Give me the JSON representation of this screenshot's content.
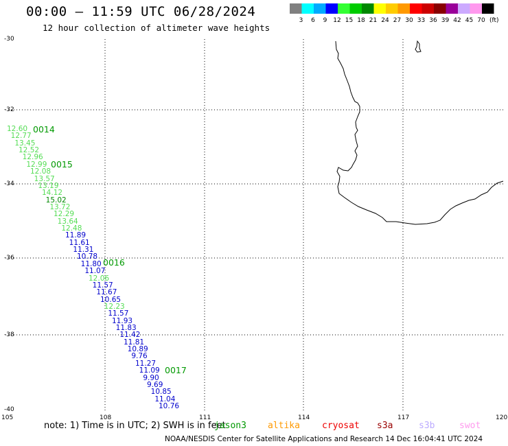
{
  "header": {
    "title": "00:00 – 11:59 UTC 06/28/2024",
    "subtitle": "12 hour collection of altimeter wave heights"
  },
  "legend": {
    "unit": "(ft)",
    "bins": [
      {
        "label": "3",
        "color": "#808080"
      },
      {
        "label": "6",
        "color": "#00ffff"
      },
      {
        "label": "9",
        "color": "#00aaff"
      },
      {
        "label": "12",
        "color": "#0000ff"
      },
      {
        "label": "15",
        "color": "#33ff33"
      },
      {
        "label": "18",
        "color": "#00cc00"
      },
      {
        "label": "21",
        "color": "#008800"
      },
      {
        "label": "24",
        "color": "#ffff00"
      },
      {
        "label": "27",
        "color": "#ffcc00"
      },
      {
        "label": "30",
        "color": "#ff9900"
      },
      {
        "label": "33",
        "color": "#ff0000"
      },
      {
        "label": "36",
        "color": "#cc0000"
      },
      {
        "label": "39",
        "color": "#880000"
      },
      {
        "label": "42",
        "color": "#990099"
      },
      {
        "label": "45",
        "color": "#ccaaff"
      },
      {
        "label": "70",
        "color": "#ff99ee"
      },
      {
        "label": "",
        "color": "#000000"
      }
    ]
  },
  "axes": {
    "lat_ticks": [
      "-30",
      "-32",
      "-34",
      "-36",
      "-38",
      "-40"
    ],
    "lon_ticks": [
      "105",
      "108",
      "111",
      "114",
      "117",
      "120"
    ]
  },
  "passes": [
    "0014",
    "0015",
    "0016",
    "0017"
  ],
  "points": [
    {
      "v": "12.60",
      "c": "#55dd55"
    },
    {
      "v": "12.77",
      "c": "#55dd55"
    },
    {
      "v": "13.45",
      "c": "#55dd55"
    },
    {
      "v": "12.52",
      "c": "#55dd55"
    },
    {
      "v": "12.96",
      "c": "#55dd55"
    },
    {
      "v": "12.99",
      "c": "#55dd55"
    },
    {
      "v": "12.08",
      "c": "#55dd55"
    },
    {
      "v": "13.57",
      "c": "#55dd55"
    },
    {
      "v": "13.19",
      "c": "#55dd55"
    },
    {
      "v": "14.12",
      "c": "#55dd55"
    },
    {
      "v": "15.02",
      "c": "#008800"
    },
    {
      "v": "13.72",
      "c": "#55dd55"
    },
    {
      "v": "12.29",
      "c": "#55dd55"
    },
    {
      "v": "13.64",
      "c": "#55dd55"
    },
    {
      "v": "12.48",
      "c": "#55dd55"
    },
    {
      "v": "11.89",
      "c": "#0000cc"
    },
    {
      "v": "11.61",
      "c": "#0000cc"
    },
    {
      "v": "11.31",
      "c": "#0000cc"
    },
    {
      "v": "10.78",
      "c": "#0000cc"
    },
    {
      "v": "11.80",
      "c": "#0000cc"
    },
    {
      "v": "11.07",
      "c": "#0000cc"
    },
    {
      "v": "12.06",
      "c": "#55dd55"
    },
    {
      "v": "11.57",
      "c": "#0000cc"
    },
    {
      "v": "11.67",
      "c": "#0000cc"
    },
    {
      "v": "10.65",
      "c": "#0000cc"
    },
    {
      "v": "12.23",
      "c": "#55dd55"
    },
    {
      "v": "11.57",
      "c": "#0000cc"
    },
    {
      "v": "11.93",
      "c": "#0000cc"
    },
    {
      "v": "11.83",
      "c": "#0000cc"
    },
    {
      "v": "11.42",
      "c": "#0000cc"
    },
    {
      "v": "11.81",
      "c": "#0000cc"
    },
    {
      "v": "10.89",
      "c": "#0000cc"
    },
    {
      "v": "9.76",
      "c": "#0000cc"
    },
    {
      "v": "11.27",
      "c": "#0000cc"
    },
    {
      "v": "11.09",
      "c": "#0000cc"
    },
    {
      "v": "9.90",
      "c": "#0000cc"
    },
    {
      "v": "9.69",
      "c": "#0000cc"
    },
    {
      "v": "10.85",
      "c": "#0000cc"
    },
    {
      "v": "11.04",
      "c": "#0000cc"
    },
    {
      "v": "10.76",
      "c": "#0000cc"
    }
  ],
  "footer": {
    "note": "note: 1) Time is in UTC; 2) SWH is in feet",
    "satellites": [
      {
        "name": "jason3",
        "color": "#009900"
      },
      {
        "name": "altika",
        "color": "#ff9900"
      },
      {
        "name": "cryosat",
        "color": "#ee0000"
      },
      {
        "name": "s3a",
        "color": "#990000"
      },
      {
        "name": "s3b",
        "color": "#bbaaff"
      },
      {
        "name": "swot",
        "color": "#ff99ee"
      }
    ],
    "credit": "NOAA/NESDIS Center for Satellite Applications and Research    14 Dec 16:04:41 UTC 2024"
  }
}
